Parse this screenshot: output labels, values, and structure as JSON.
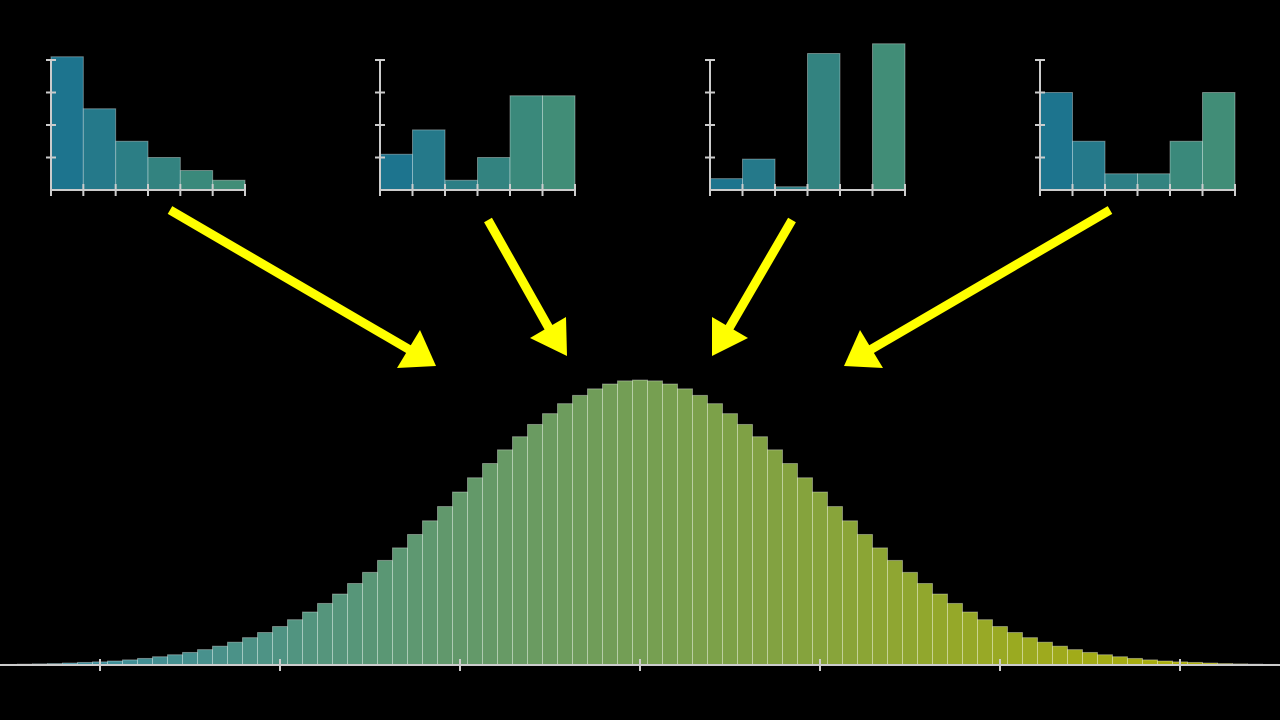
{
  "chart_data": [
    {
      "type": "histogram",
      "bins": [
        1,
        2,
        3,
        4,
        5,
        6,
        7
      ],
      "values": [
        4.1,
        2.5,
        1.5,
        1.0,
        0.6,
        0.3
      ],
      "xlim": [
        1,
        7
      ],
      "ylim": [
        0,
        4
      ],
      "xticks": [
        1,
        2,
        3,
        4,
        5,
        6,
        7
      ],
      "yticks": [
        1,
        2,
        3,
        4
      ],
      "colors": [
        "#1f7a96",
        "#45957d"
      ]
    },
    {
      "type": "histogram",
      "bins": [
        1,
        2,
        3,
        4,
        5,
        6,
        7
      ],
      "values": [
        1.1,
        1.85,
        0.3,
        1.0,
        2.9,
        2.9
      ],
      "xlim": [
        1,
        7
      ],
      "ylim": [
        0,
        4
      ],
      "xticks": [
        1,
        2,
        3,
        4,
        5,
        6,
        7
      ],
      "yticks": [
        1,
        2,
        3,
        4
      ],
      "colors": [
        "#1f7a96",
        "#45957d"
      ]
    },
    {
      "type": "histogram",
      "bins": [
        1,
        2,
        3,
        4,
        5,
        6,
        7
      ],
      "values": [
        0.35,
        0.95,
        0.1,
        4.2,
        0,
        4.5
      ],
      "xlim": [
        1,
        7
      ],
      "ylim": [
        0,
        4
      ],
      "xticks": [
        1,
        2,
        3,
        4,
        5,
        6,
        7
      ],
      "yticks": [
        1,
        2,
        3,
        4
      ],
      "colors": [
        "#1f7a96",
        "#45957d"
      ]
    },
    {
      "type": "histogram",
      "bins": [
        1,
        2,
        3,
        4,
        5,
        6,
        7
      ],
      "values": [
        3.0,
        1.5,
        0.5,
        0.5,
        1.5,
        3.0
      ],
      "xlim": [
        1,
        7
      ],
      "ylim": [
        0,
        4
      ],
      "xticks": [
        1,
        2,
        3,
        4,
        5,
        6,
        7
      ],
      "yticks": [
        1,
        2,
        3,
        4
      ],
      "colors": [
        "#1f7a96",
        "#45957d"
      ]
    },
    {
      "type": "histogram",
      "bins": [
        -42.5,
        -41.5,
        -40.5,
        -39.5,
        -38.5,
        -37.5,
        -36.5,
        -35.5,
        -34.5,
        -33.5,
        -32.5,
        -31.5,
        -30.5,
        -29.5,
        -28.5,
        -27.5,
        -26.5,
        -25.5,
        -24.5,
        -23.5,
        -22.5,
        -21.5,
        -20.5,
        -19.5,
        -18.5,
        -17.5,
        -16.5,
        -15.5,
        -14.5,
        -13.5,
        -12.5,
        -11.5,
        -10.5,
        -9.5,
        -8.5,
        -7.5,
        -6.5,
        -5.5,
        -4.5,
        -3.5,
        -2.5,
        -1.5,
        -0.5,
        0.5,
        1.5,
        2.5,
        3.5,
        4.5,
        5.5,
        6.5,
        7.5,
        8.5,
        9.5,
        10.5,
        11.5,
        12.5,
        13.5,
        14.5,
        15.5,
        16.5,
        17.5,
        18.5,
        19.5,
        20.5,
        21.5,
        22.5,
        23.5,
        24.5,
        25.5,
        26.5,
        27.5,
        28.5,
        29.5,
        30.5,
        31.5,
        32.5,
        33.5,
        34.5,
        35.5,
        36.5,
        37.5,
        38.5,
        39.5,
        40.5,
        41.5,
        42.5
      ],
      "values": [
        0.2,
        0.3,
        0.4,
        0.5,
        0.7,
        0.9,
        1.1,
        1.4,
        1.8,
        2.3,
        2.9,
        3.6,
        4.4,
        5.4,
        6.6,
        8.0,
        9.6,
        11.4,
        13.5,
        15.9,
        18.6,
        21.6,
        24.9,
        28.6,
        32.5,
        36.7,
        41.1,
        45.8,
        50.6,
        55.6,
        60.7,
        65.7,
        70.7,
        75.5,
        80.1,
        84.4,
        88.2,
        91.7,
        94.6,
        96.9,
        98.6,
        99.7,
        100,
        99.7,
        98.6,
        96.9,
        94.6,
        91.7,
        88.2,
        84.4,
        80.1,
        75.5,
        70.7,
        65.7,
        60.7,
        55.6,
        50.6,
        45.8,
        41.1,
        36.7,
        32.5,
        28.6,
        24.9,
        21.6,
        18.6,
        15.9,
        13.5,
        11.4,
        9.6,
        8.0,
        6.6,
        5.4,
        4.4,
        3.6,
        2.9,
        2.3,
        1.8,
        1.4,
        1.1,
        0.9,
        0.7,
        0.5,
        0.4,
        0.3,
        0.2
      ],
      "xlim": [
        -42.5,
        42.5
      ],
      "ylim": [
        0,
        100
      ],
      "xticks": [
        -36,
        -24,
        -12,
        0,
        12,
        24,
        36
      ],
      "colors": [
        "#3a9ab8",
        "#c8c400"
      ]
    }
  ]
}
